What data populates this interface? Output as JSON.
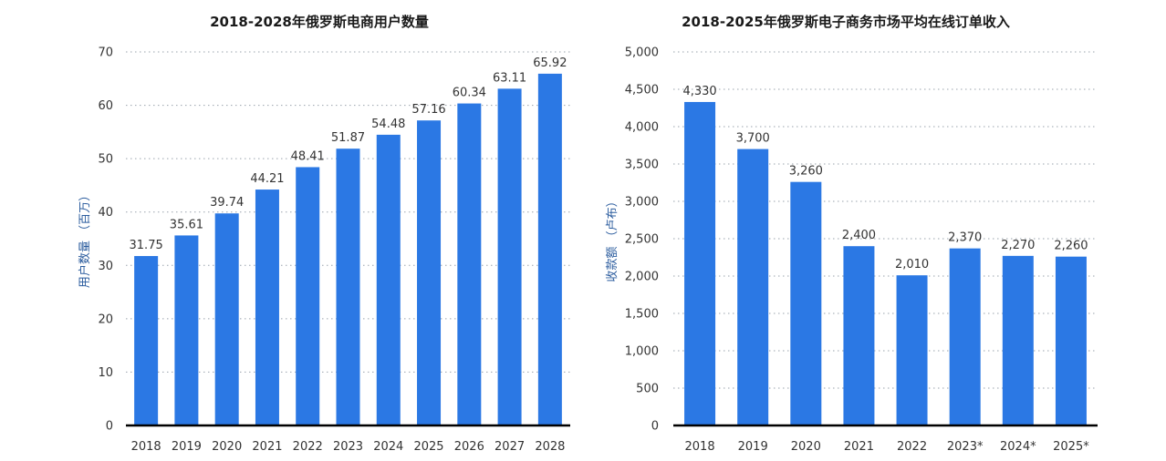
{
  "chart_data": [
    {
      "type": "bar",
      "title": "2018-2028年俄罗斯电商用户数量",
      "ylabel": "用户数量 （百万）",
      "xlabel": "",
      "ylim": [
        0,
        70
      ],
      "yticks": [
        "0",
        "10",
        "20",
        "30",
        "40",
        "50",
        "60",
        "70"
      ],
      "grid": true,
      "bar_color": "#2b78e4",
      "categories": [
        "2018",
        "2019",
        "2020",
        "2021",
        "2022",
        "2023",
        "2024",
        "2025",
        "2026",
        "2027",
        "2028"
      ],
      "values": [
        31.75,
        35.61,
        39.74,
        44.21,
        48.41,
        51.87,
        54.48,
        57.16,
        60.34,
        63.11,
        65.92
      ],
      "value_labels": [
        "31.75",
        "35.61",
        "39.74",
        "44.21",
        "48.41",
        "51.87",
        "54.48",
        "57.16",
        "60.34",
        "63.11",
        "65.92"
      ]
    },
    {
      "type": "bar",
      "title": "2018-2025年俄罗斯电子商务市场平均在线订单收入",
      "ylabel": "收款额 （卢布）",
      "xlabel": "",
      "ylim": [
        0,
        5000
      ],
      "yticks": [
        "0",
        "500",
        "1,000",
        "1,500",
        "2,000",
        "2,500",
        "3,000",
        "3,500",
        "4,000",
        "4,500",
        "5,000"
      ],
      "grid": true,
      "bar_color": "#2b78e4",
      "categories": [
        "2018",
        "2019",
        "2020",
        "2021",
        "2022",
        "2023*",
        "2024*",
        "2025*"
      ],
      "values": [
        4330,
        3700,
        3260,
        2400,
        2010,
        2370,
        2270,
        2260
      ],
      "value_labels": [
        "4,330",
        "3,700",
        "3,260",
        "2,400",
        "2,010",
        "2,370",
        "2,270",
        "2,260"
      ]
    }
  ]
}
